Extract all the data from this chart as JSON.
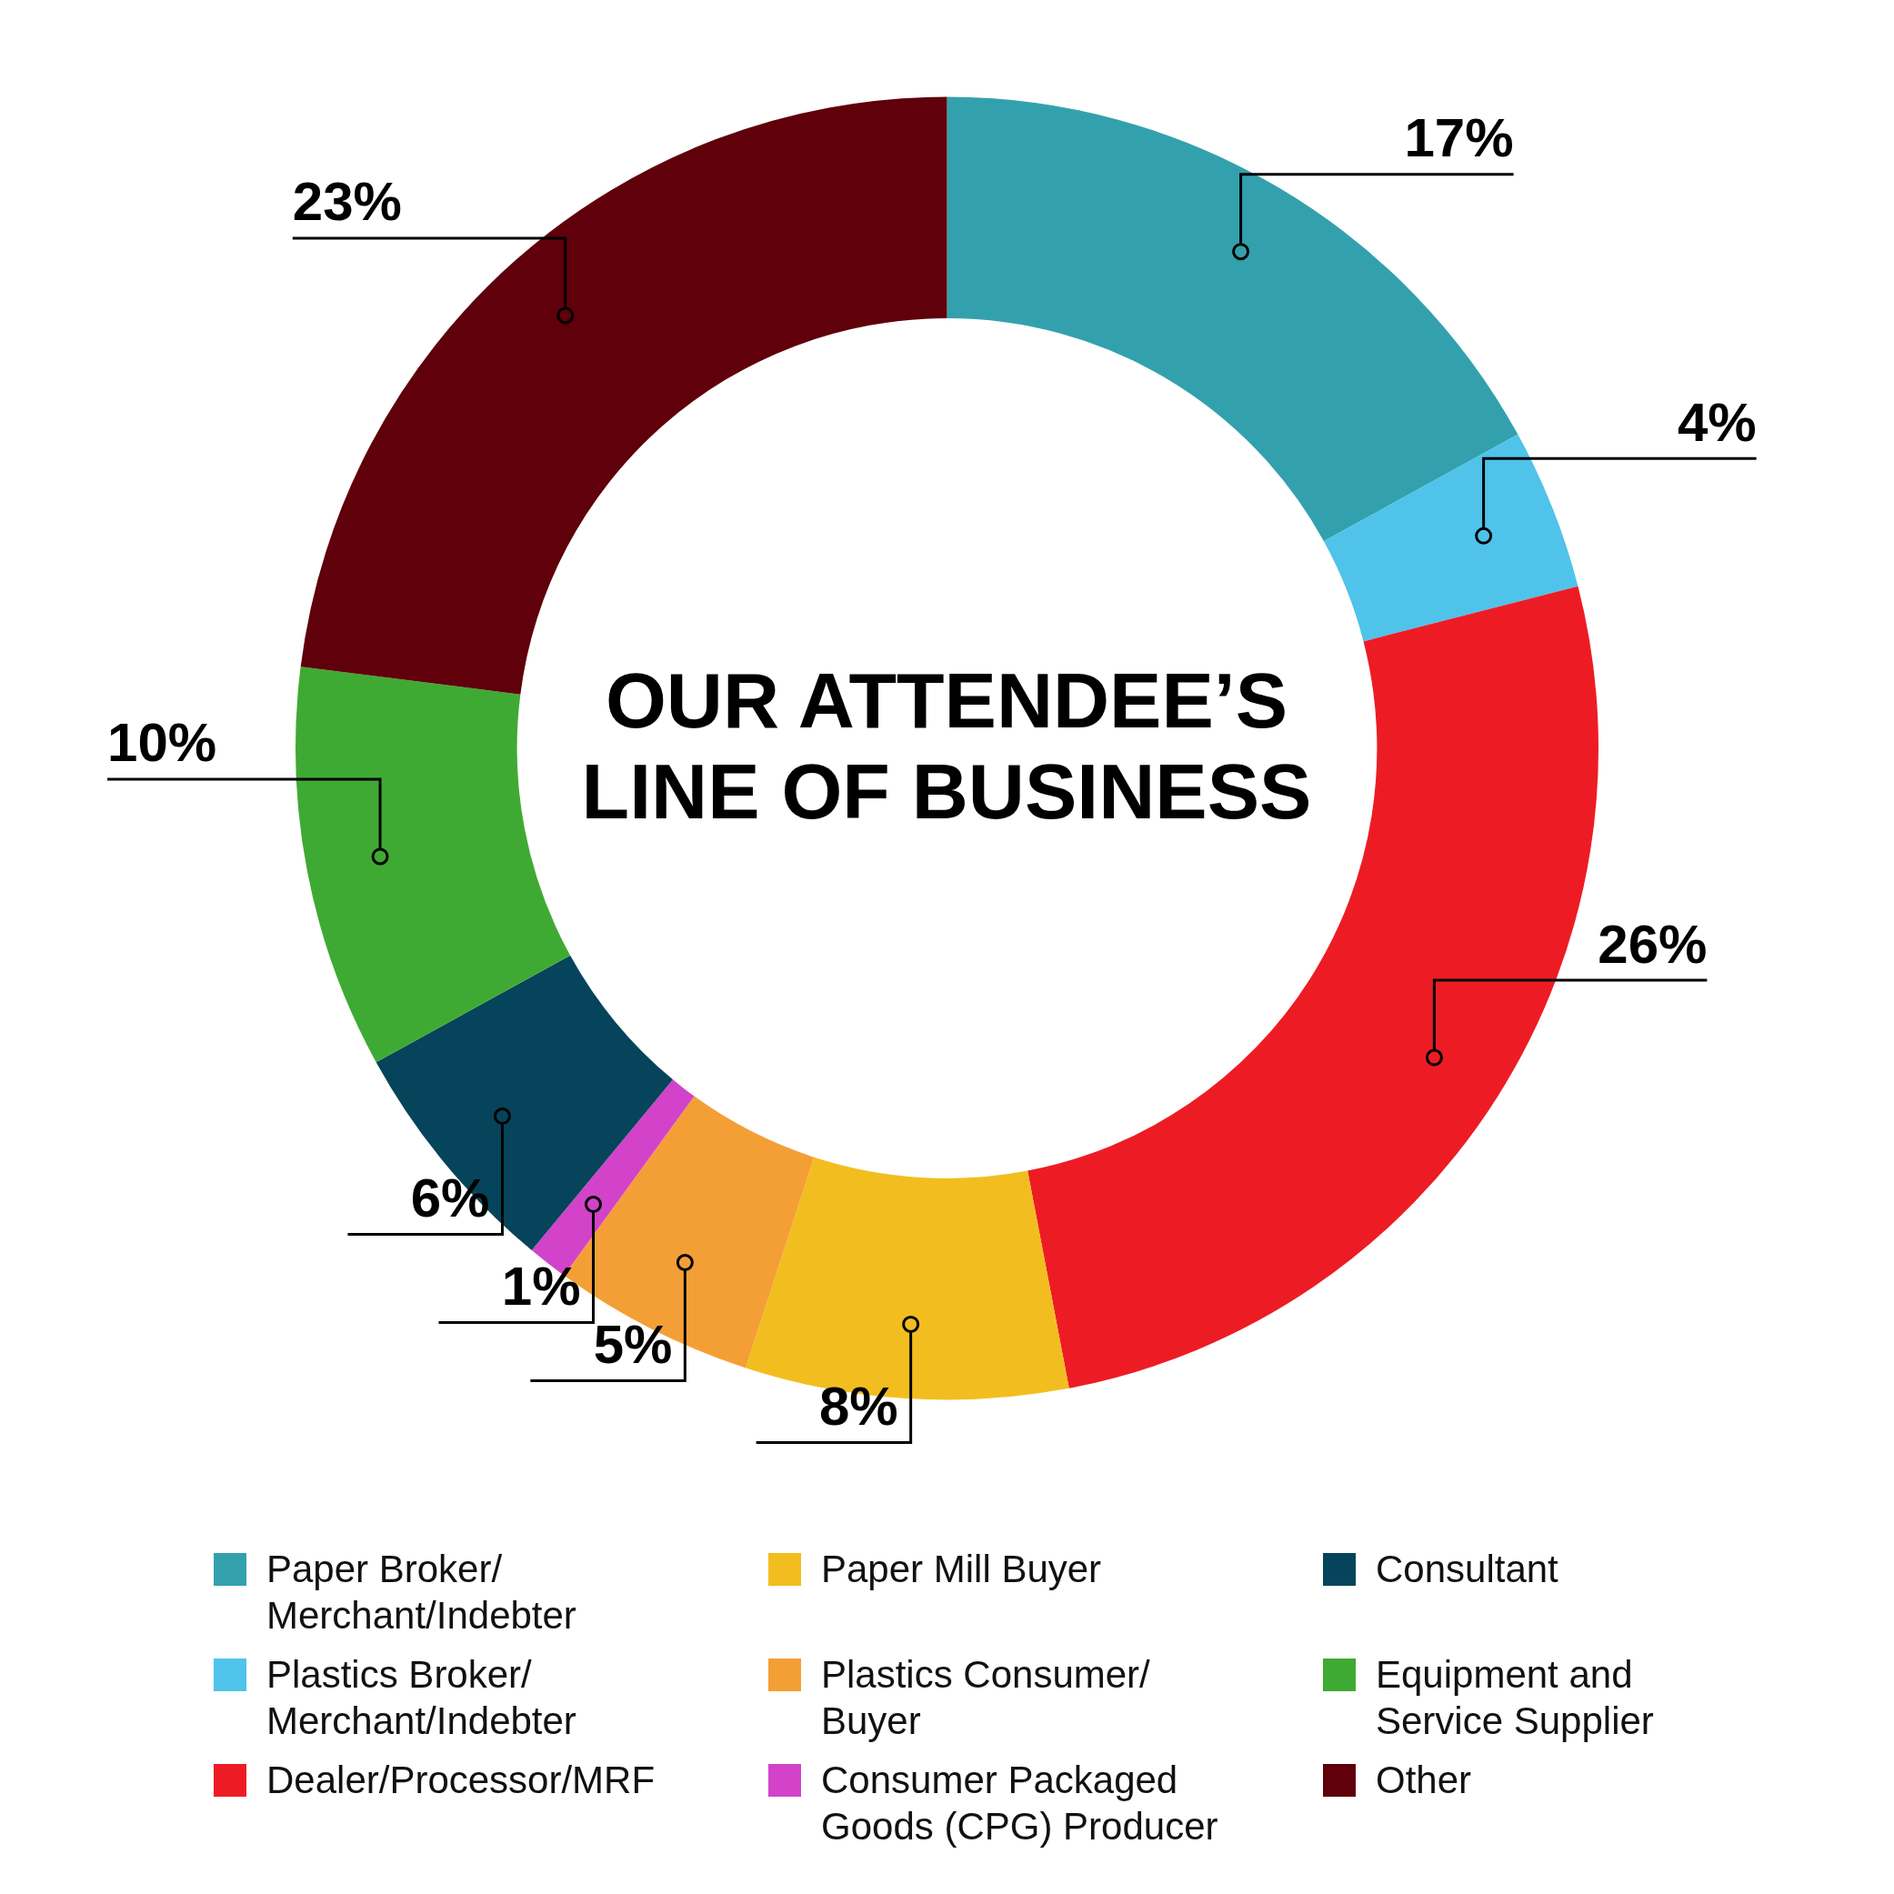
{
  "chart_data": {
    "type": "donut",
    "title": "OUR ATTENDEE’S LINE OF BUSINESS",
    "categories": [
      "Paper Broker/ Merchant/Indebter",
      "Plastics Broker/ Merchant/Indebter",
      "Dealer/Processor/MRF",
      "Paper Mill Buyer",
      "Plastics Consumer/ Buyer",
      "Consumer Packaged Goods (CPG) Producer",
      "Consultant",
      "Equipment and Service Supplier",
      "Other"
    ],
    "values": [
      17,
      4,
      26,
      8,
      5,
      1,
      6,
      10,
      23
    ],
    "value_labels": [
      "17%",
      "4%",
      "26%",
      "8%",
      "5%",
      "1%",
      "6%",
      "10%",
      "23%"
    ],
    "colors": [
      "#33a1ad",
      "#4fc3ea",
      "#ed1c24",
      "#f2be1f",
      "#f49f36",
      "#d243c9",
      "#05445a",
      "#3faa33",
      "#5f000a"
    ],
    "legend": "bottom"
  }
}
